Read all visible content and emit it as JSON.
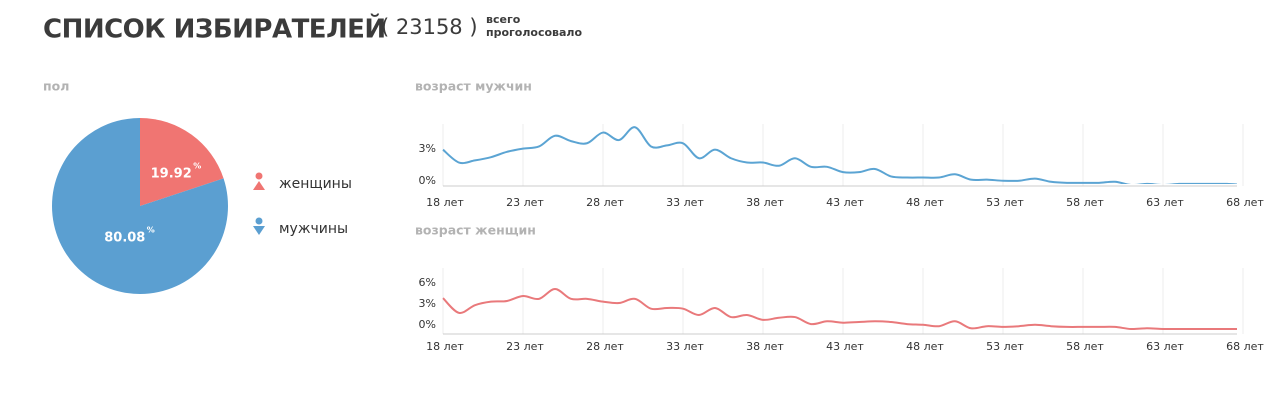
{
  "header": {
    "title": "СПИСОК ИЗБИРАТЕЛЕЙ",
    "count": "( 23158 )",
    "note_line1": "всего",
    "note_line2": "проголосовало"
  },
  "chart_data": [
    {
      "type": "pie",
      "title": "пол",
      "categories": [
        "женщины",
        "мужчины"
      ],
      "values": [
        19.92,
        80.08
      ],
      "unit": "%",
      "colors": [
        "#f07572",
        "#5b9fd1"
      ]
    },
    {
      "type": "line",
      "title": "возраст мужчин",
      "color": "#5ba4d3",
      "x": [
        18,
        19,
        20,
        21,
        22,
        23,
        24,
        25,
        26,
        27,
        28,
        29,
        30,
        31,
        32,
        33,
        34,
        35,
        36,
        37,
        38,
        39,
        40,
        41,
        42,
        43,
        44,
        45,
        46,
        47,
        48,
        49,
        50,
        51,
        52,
        53,
        54,
        55,
        56,
        57,
        58,
        59,
        60,
        61,
        62,
        63,
        64,
        65,
        66,
        67,
        68
      ],
      "values": [
        3.3,
        2.1,
        2.3,
        2.6,
        3.1,
        3.4,
        3.6,
        4.6,
        4.1,
        3.9,
        4.9,
        4.2,
        5.4,
        3.6,
        3.7,
        3.9,
        2.5,
        3.3,
        2.5,
        2.1,
        2.1,
        1.8,
        2.5,
        1.7,
        1.7,
        1.2,
        1.2,
        1.5,
        0.8,
        0.7,
        0.7,
        0.7,
        1.0,
        0.5,
        0.5,
        0.4,
        0.4,
        0.6,
        0.3,
        0.2,
        0.2,
        0.2,
        0.3,
        0,
        0.1,
        0,
        0.1,
        0.1,
        0.1,
        0.1,
        0
      ],
      "xlim": [
        18,
        68
      ],
      "ylim": [
        0,
        5.7
      ],
      "xticks": [
        {
          "value": 18,
          "label": "18 лет"
        },
        {
          "value": 23,
          "label": "23 лет"
        },
        {
          "value": 28,
          "label": "28 лет"
        },
        {
          "value": 33,
          "label": "33 лет"
        },
        {
          "value": 38,
          "label": "38 лет"
        },
        {
          "value": 43,
          "label": "43 лет"
        },
        {
          "value": 48,
          "label": "48 лет"
        },
        {
          "value": 53,
          "label": "53 лет"
        },
        {
          "value": 58,
          "label": "58 лет"
        },
        {
          "value": 63,
          "label": "63 лет"
        },
        {
          "value": 68,
          "label": "68 лет"
        }
      ],
      "yticks": [
        {
          "value": 0,
          "label": "0%"
        },
        {
          "value": 3,
          "label": "3%"
        }
      ]
    },
    {
      "type": "line",
      "title": "возраст женщин",
      "color": "#e9797b",
      "x": [
        18,
        19,
        20,
        21,
        22,
        23,
        24,
        25,
        26,
        27,
        28,
        29,
        30,
        31,
        32,
        33,
        34,
        35,
        36,
        37,
        38,
        39,
        40,
        41,
        42,
        43,
        44,
        45,
        46,
        47,
        48,
        49,
        50,
        51,
        52,
        53,
        54,
        55,
        56,
        57,
        58,
        59,
        60,
        61,
        62,
        63,
        64,
        65,
        66,
        67,
        68
      ],
      "values": [
        4.4,
        2.3,
        3.4,
        3.9,
        4.0,
        4.7,
        4.3,
        5.7,
        4.3,
        4.3,
        3.9,
        3.7,
        4.3,
        2.9,
        3.0,
        2.9,
        2.0,
        3.0,
        1.7,
        2.0,
        1.3,
        1.6,
        1.7,
        0.7,
        1.1,
        0.9,
        1.0,
        1.1,
        1.0,
        0.7,
        0.6,
        0.4,
        1.1,
        0.1,
        0.4,
        0.3,
        0.4,
        0.6,
        0.4,
        0.3,
        0.3,
        0.3,
        0.3,
        0,
        0.1,
        0,
        0,
        0,
        0,
        0,
        0
      ],
      "xlim": [
        18,
        68
      ],
      "ylim": [
        0,
        8.7
      ],
      "xticks": [
        {
          "value": 18,
          "label": "18 лет"
        },
        {
          "value": 23,
          "label": "23 лет"
        },
        {
          "value": 28,
          "label": "28 лет"
        },
        {
          "value": 33,
          "label": "33 лет"
        },
        {
          "value": 38,
          "label": "38 лет"
        },
        {
          "value": 43,
          "label": "43 лет"
        },
        {
          "value": 48,
          "label": "48 лет"
        },
        {
          "value": 53,
          "label": "53 лет"
        },
        {
          "value": 58,
          "label": "58 лет"
        },
        {
          "value": 63,
          "label": "63 лет"
        },
        {
          "value": 68,
          "label": "68 лет"
        }
      ],
      "yticks": [
        {
          "value": 0,
          "label": "0%"
        },
        {
          "value": 3,
          "label": "3%"
        },
        {
          "value": 6,
          "label": "6%"
        }
      ]
    }
  ]
}
